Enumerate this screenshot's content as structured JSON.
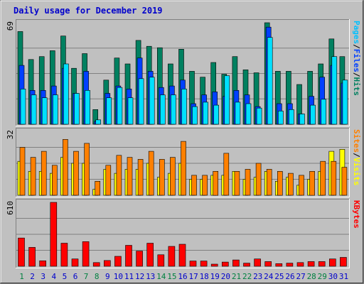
{
  "title": "Daily usage for December 2019",
  "colors": {
    "background": "#c0c0c0",
    "plot_background": "#c0c0c0",
    "title": "#0000cc",
    "hits": "#008060",
    "files": "#0040ff",
    "pages": "#00e0ff",
    "visits": "#ffff00",
    "sites": "#ff8000",
    "kbytes": "#ff0000",
    "weekend": "#008040",
    "weekday": "#0000cc"
  },
  "chart_data": [
    {
      "type": "bar",
      "panel": "top",
      "ymax_label": "69",
      "ylim": [
        0,
        69
      ],
      "label_parts": [
        {
          "text": "Pages",
          "color": "#00c0ff"
        },
        {
          "text": "/",
          "color": "#000000"
        },
        {
          "text": "Files",
          "color": "#0040ff"
        },
        {
          "text": "/",
          "color": "#000000"
        },
        {
          "text": "Hits",
          "color": "#008060"
        }
      ],
      "categories": [
        "1",
        "2",
        "3",
        "4",
        "5",
        "6",
        "7",
        "8",
        "9",
        "10",
        "11",
        "12",
        "13",
        "14",
        "15",
        "16",
        "17",
        "18",
        "19",
        "20",
        "21",
        "22",
        "23",
        "24",
        "25",
        "26",
        "27",
        "28",
        "29",
        "30",
        "31"
      ],
      "series": [
        {
          "name": "Hits",
          "values": [
            63,
            44,
            46,
            50,
            60,
            38,
            48,
            10,
            30,
            45,
            41,
            57,
            53,
            52,
            41,
            51,
            36,
            32,
            42,
            34,
            46,
            37,
            35,
            69,
            36,
            36,
            27,
            36,
            41,
            58,
            46
          ]
        },
        {
          "name": "Files",
          "values": [
            40,
            23,
            23,
            26,
            38,
            21,
            36,
            2,
            21,
            26,
            24,
            45,
            36,
            25,
            26,
            30,
            14,
            20,
            22,
            19,
            23,
            20,
            12,
            66,
            14,
            14,
            7,
            19,
            32,
            40,
            28
          ]
        },
        {
          "name": "Pages",
          "values": [
            24,
            20,
            18,
            20,
            41,
            21,
            23,
            3,
            18,
            25,
            18,
            31,
            32,
            20,
            20,
            24,
            12,
            15,
            13,
            33,
            15,
            14,
            11,
            59,
            9,
            10,
            7,
            13,
            17,
            46,
            30
          ]
        }
      ]
    },
    {
      "type": "bar",
      "panel": "middle",
      "ymax_label": "32",
      "ylim": [
        0,
        32
      ],
      "label_parts": [
        {
          "text": "Sites",
          "color": "#ff8000"
        },
        {
          "text": "/",
          "color": "#000000"
        },
        {
          "text": "Visits",
          "color": "#ffff00"
        }
      ],
      "categories": [
        "1",
        "2",
        "3",
        "4",
        "5",
        "6",
        "7",
        "8",
        "9",
        "10",
        "11",
        "12",
        "13",
        "14",
        "15",
        "16",
        "17",
        "18",
        "19",
        "20",
        "21",
        "22",
        "23",
        "24",
        "25",
        "26",
        "27",
        "28",
        "29",
        "30",
        "31"
      ],
      "series": [
        {
          "name": "Visits",
          "values": [
            17,
            12,
            12,
            11,
            19,
            16,
            16,
            3,
            13,
            11,
            13,
            13,
            16,
            9,
            11,
            16,
            8,
            8,
            10,
            10,
            12,
            8,
            9,
            12,
            7,
            9,
            5,
            8,
            12,
            22,
            23
          ]
        },
        {
          "name": "Sites",
          "values": [
            24,
            19,
            22,
            15,
            28,
            22,
            26,
            7,
            15,
            20,
            19,
            18,
            22,
            18,
            19,
            27,
            10,
            10,
            12,
            21,
            12,
            13,
            16,
            13,
            12,
            11,
            10,
            12,
            17,
            17,
            14
          ]
        }
      ]
    },
    {
      "type": "bar",
      "panel": "bottom",
      "ymax_label": "610",
      "ylim": [
        0,
        610
      ],
      "label_parts": [
        {
          "text": "KBytes",
          "color": "#ff0000"
        }
      ],
      "categories": [
        "1",
        "2",
        "3",
        "4",
        "5",
        "6",
        "7",
        "8",
        "9",
        "10",
        "11",
        "12",
        "13",
        "14",
        "15",
        "16",
        "17",
        "18",
        "19",
        "20",
        "21",
        "22",
        "23",
        "24",
        "25",
        "26",
        "27",
        "28",
        "29",
        "30",
        "31"
      ],
      "series": [
        {
          "name": "KBytes",
          "values": [
            270,
            180,
            52,
            610,
            220,
            70,
            235,
            35,
            55,
            95,
            200,
            145,
            220,
            110,
            190,
            210,
            50,
            50,
            20,
            40,
            60,
            30,
            70,
            45,
            25,
            30,
            35,
            45,
            45,
            70,
            85
          ]
        }
      ]
    }
  ],
  "days": [
    {
      "label": "1",
      "weekend": true
    },
    {
      "label": "2",
      "weekend": false
    },
    {
      "label": "3",
      "weekend": false
    },
    {
      "label": "4",
      "weekend": false
    },
    {
      "label": "5",
      "weekend": false
    },
    {
      "label": "6",
      "weekend": false
    },
    {
      "label": "7",
      "weekend": true
    },
    {
      "label": "8",
      "weekend": true
    },
    {
      "label": "9",
      "weekend": false
    },
    {
      "label": "10",
      "weekend": false
    },
    {
      "label": "11",
      "weekend": false
    },
    {
      "label": "12",
      "weekend": false
    },
    {
      "label": "13",
      "weekend": false
    },
    {
      "label": "14",
      "weekend": true
    },
    {
      "label": "15",
      "weekend": true
    },
    {
      "label": "16",
      "weekend": false
    },
    {
      "label": "17",
      "weekend": false
    },
    {
      "label": "18",
      "weekend": false
    },
    {
      "label": "19",
      "weekend": false
    },
    {
      "label": "20",
      "weekend": false
    },
    {
      "label": "21",
      "weekend": true
    },
    {
      "label": "22",
      "weekend": true
    },
    {
      "label": "23",
      "weekend": false
    },
    {
      "label": "24",
      "weekend": false
    },
    {
      "label": "25",
      "weekend": false
    },
    {
      "label": "26",
      "weekend": false
    },
    {
      "label": "27",
      "weekend": false
    },
    {
      "label": "28",
      "weekend": true
    },
    {
      "label": "29",
      "weekend": true
    },
    {
      "label": "30",
      "weekend": false
    },
    {
      "label": "31",
      "weekend": false
    }
  ]
}
